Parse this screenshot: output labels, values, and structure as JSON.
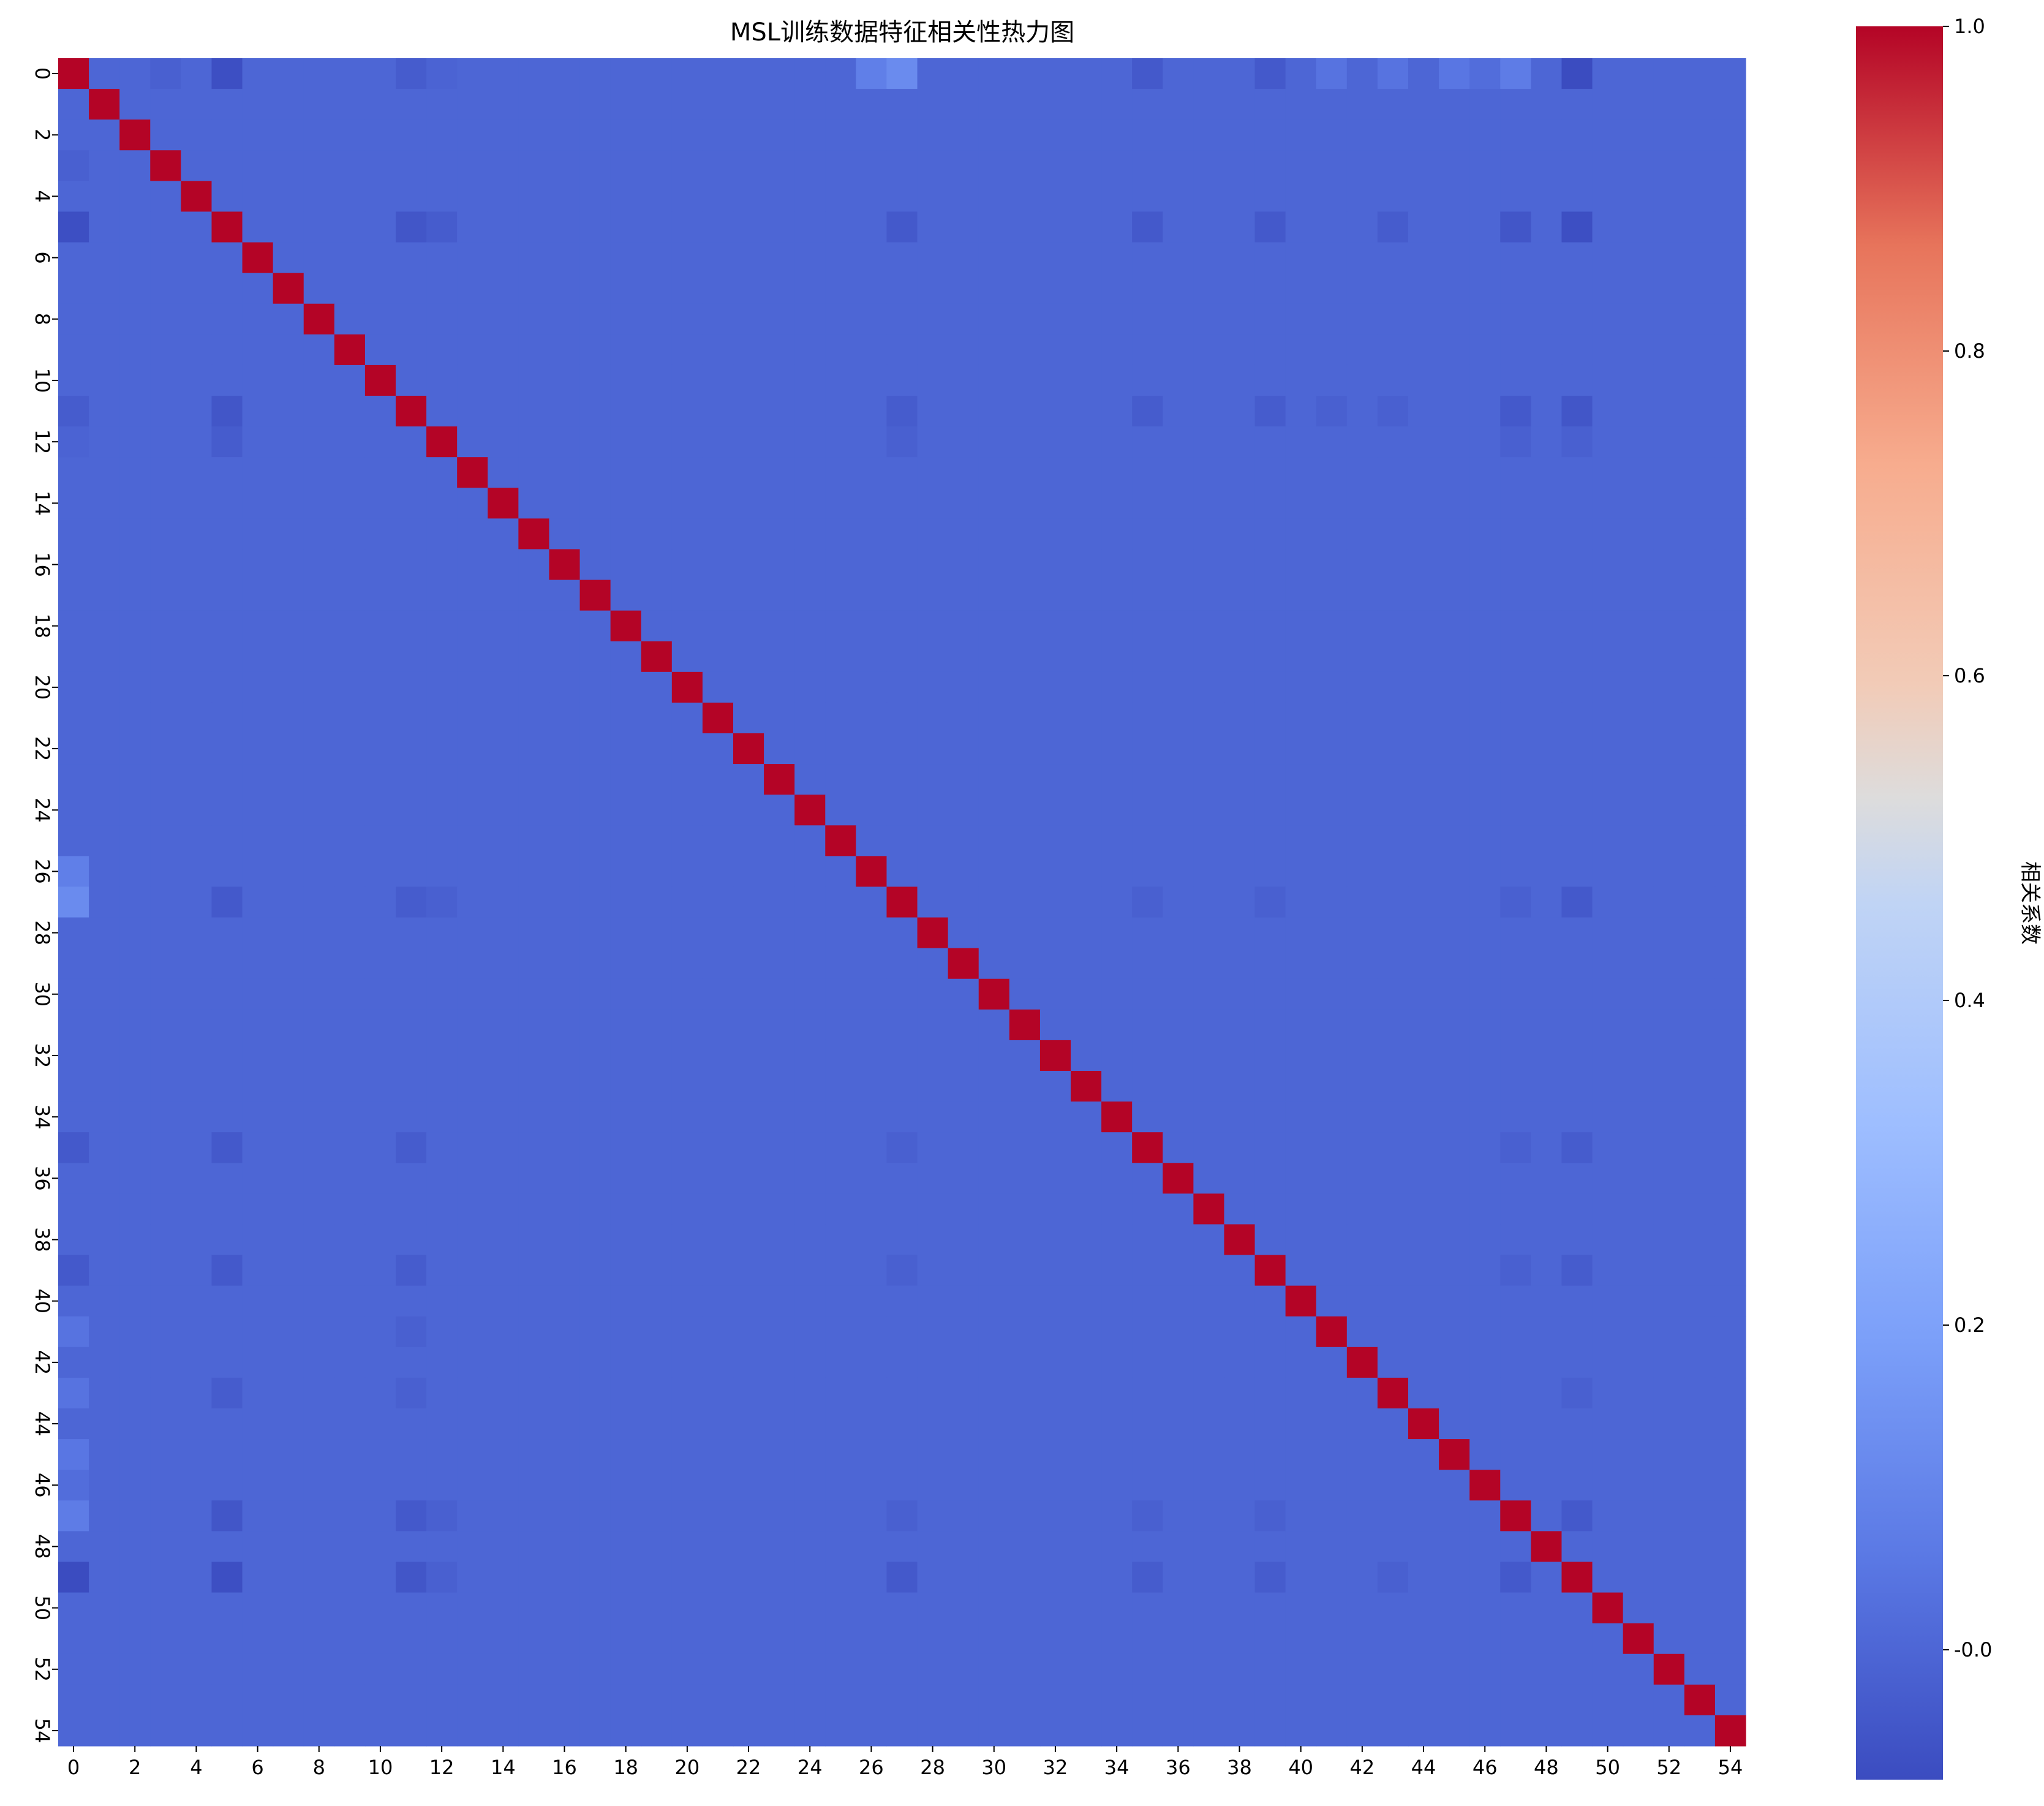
{
  "chart_data": {
    "type": "heatmap",
    "title": "MSL训练数据特征相关性热力图",
    "n": 55,
    "x_tick_labels": [
      "0",
      "2",
      "4",
      "6",
      "8",
      "10",
      "12",
      "14",
      "16",
      "18",
      "20",
      "22",
      "24",
      "26",
      "28",
      "30",
      "32",
      "34",
      "36",
      "38",
      "40",
      "42",
      "44",
      "46",
      "48",
      "50",
      "52",
      "54"
    ],
    "y_tick_labels": [
      "0",
      "2",
      "4",
      "6",
      "8",
      "10",
      "12",
      "14",
      "16",
      "18",
      "20",
      "22",
      "24",
      "26",
      "28",
      "30",
      "32",
      "34",
      "36",
      "38",
      "40",
      "42",
      "44",
      "46",
      "48",
      "50",
      "52",
      "54"
    ],
    "diagonal_value": 1.0,
    "baseline_value": 0.0,
    "off_diagonal_cells": [
      [
        0,
        5,
        -0.07
      ],
      [
        0,
        3,
        -0.02
      ],
      [
        0,
        11,
        -0.03
      ],
      [
        0,
        12,
        -0.01
      ],
      [
        0,
        27,
        0.12
      ],
      [
        0,
        35,
        -0.04
      ],
      [
        0,
        39,
        -0.04
      ],
      [
        0,
        41,
        0.05
      ],
      [
        0,
        43,
        0.07
      ],
      [
        0,
        45,
        0.05
      ],
      [
        0,
        47,
        0.1
      ],
      [
        0,
        49,
        -0.08
      ],
      [
        5,
        11,
        -0.05
      ],
      [
        5,
        12,
        -0.03
      ],
      [
        5,
        27,
        -0.04
      ],
      [
        5,
        35,
        -0.04
      ],
      [
        5,
        39,
        -0.04
      ],
      [
        5,
        43,
        -0.03
      ],
      [
        5,
        47,
        -0.05
      ],
      [
        5,
        49,
        -0.07
      ],
      [
        11,
        27,
        -0.03
      ],
      [
        11,
        35,
        -0.03
      ],
      [
        11,
        39,
        -0.03
      ],
      [
        11,
        41,
        -0.02
      ],
      [
        11,
        43,
        -0.02
      ],
      [
        11,
        47,
        -0.04
      ],
      [
        11,
        49,
        -0.05
      ],
      [
        12,
        27,
        -0.02
      ],
      [
        12,
        47,
        -0.02
      ],
      [
        12,
        49,
        -0.02
      ],
      [
        27,
        35,
        -0.02
      ],
      [
        27,
        39,
        -0.02
      ],
      [
        27,
        47,
        -0.02
      ],
      [
        27,
        49,
        -0.04
      ],
      [
        35,
        47,
        -0.02
      ],
      [
        35,
        49,
        -0.03
      ],
      [
        39,
        47,
        -0.02
      ],
      [
        39,
        49,
        -0.03
      ],
      [
        43,
        49,
        -0.02
      ],
      [
        47,
        49,
        -0.04
      ],
      [
        26,
        0,
        0.08
      ],
      [
        41,
        0,
        0.04
      ],
      [
        43,
        0,
        0.04
      ],
      [
        45,
        0,
        0.05
      ],
      [
        46,
        0,
        0.02
      ],
      [
        47,
        0,
        0.07
      ]
    ],
    "colorbar": {
      "label": "相关系数",
      "ticks": [
        "-0.0",
        "0.2",
        "0.4",
        "0.6",
        "0.8",
        "1.0"
      ],
      "tick_values": [
        0.0,
        0.2,
        0.4,
        0.6,
        0.8,
        1.0
      ],
      "vmin": -0.08,
      "vmax": 1.0,
      "colormap": "coolwarm"
    }
  }
}
